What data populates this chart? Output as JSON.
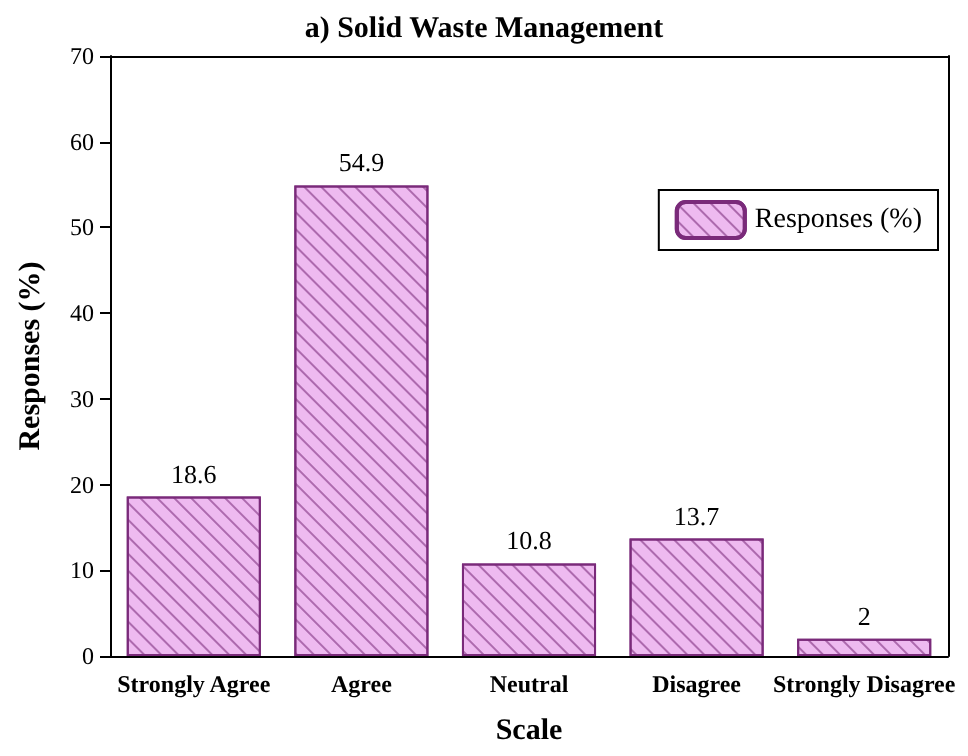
{
  "chart_data": {
    "type": "bar",
    "title": "a) Solid Waste Management",
    "xlabel": "Scale",
    "ylabel": "Responses (%)",
    "categories": [
      "Strongly Agree",
      "Agree",
      "Neutral",
      "Disagree",
      "Strongly Disagree"
    ],
    "series": [
      {
        "name": "Responses (%)",
        "color": "#eebaf0",
        "values": [
          18.6,
          54.9,
          10.8,
          13.7,
          2
        ]
      }
    ],
    "ylim": [
      0,
      70
    ],
    "yticks": [
      0,
      10,
      20,
      30,
      40,
      50,
      60,
      70
    ],
    "data_labels": true,
    "legend": "top right",
    "grid": false
  }
}
